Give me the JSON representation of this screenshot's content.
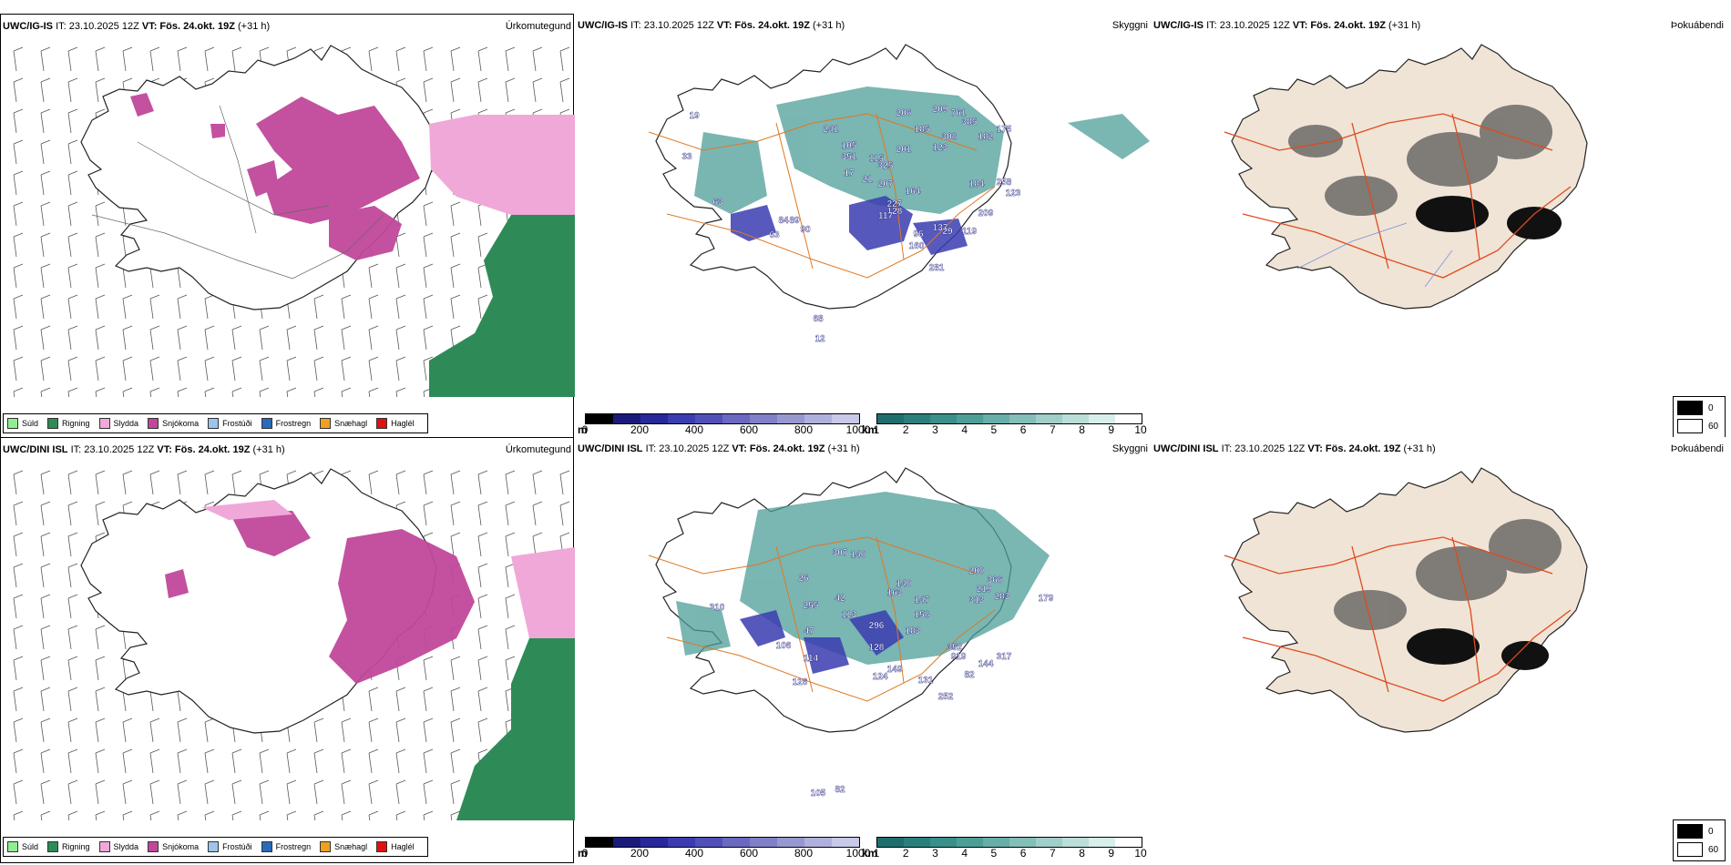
{
  "rows": [
    {
      "model": "UWC/IG-IS",
      "it_text": "IT: 23.10.2025 12Z",
      "vt_label": "VT:",
      "vt_value": "Fös. 24.okt. 19Z",
      "lead": "(+31 h)",
      "cloud_labels": [
        "19",
        "33",
        "241",
        "206",
        "761",
        "185",
        "308",
        "385",
        "209",
        "175",
        "351",
        "201",
        "123",
        "105",
        "325",
        "182",
        "258",
        "115",
        "207",
        "21",
        "164",
        "184",
        "227",
        "17",
        "123",
        "209",
        "63",
        "128",
        "29",
        "117",
        "137",
        "119",
        "96",
        "160",
        "281",
        "89",
        "90",
        "84",
        "63",
        "68",
        "12"
      ]
    },
    {
      "model": "UWC/DINI ISL",
      "it_text": "IT: 23.10.2025 12Z",
      "vt_label": "VT:",
      "vt_value": "Fös. 24.okt. 19Z",
      "lead": "(+31 h)",
      "cloud_labels": [
        "307",
        "140",
        "26",
        "140",
        "200",
        "366",
        "219",
        "313",
        "283",
        "179",
        "310",
        "255",
        "42",
        "163",
        "147",
        "158",
        "113",
        "47",
        "296",
        "183",
        "352",
        "317",
        "106",
        "114",
        "128",
        "919",
        "144",
        "149",
        "124",
        "131",
        "82",
        "252",
        "126",
        "82",
        "105"
      ]
    }
  ],
  "panel_titles": {
    "precip": "Úrkomutegund",
    "cloud": "Skyggni",
    "fog": "Þokuábendi"
  },
  "precip_legend": [
    {
      "label": "Súld",
      "color": "#90ee90"
    },
    {
      "label": "Rigning",
      "color": "#2e8b57"
    },
    {
      "label": "Slydda",
      "color": "#f0a8d8"
    },
    {
      "label": "Snjókoma",
      "color": "#c0489a"
    },
    {
      "label": "Frostúði",
      "color": "#9cc4ec"
    },
    {
      "label": "Frostregn",
      "color": "#2a6ab8"
    },
    {
      "label": "Snæhagl",
      "color": "#f0a020"
    },
    {
      "label": "Haglél",
      "color": "#e01010"
    }
  ],
  "cloud_base_bar": {
    "unit": "m",
    "ticks": [
      "0",
      "200",
      "400",
      "600",
      "800",
      "1000"
    ],
    "colors": [
      "#000000",
      "#1a1a7a",
      "#27289a",
      "#3a3cb0",
      "#5050b8",
      "#6a68c0",
      "#8080c8",
      "#9898d0",
      "#b0b0dc",
      "#c8c8e8"
    ]
  },
  "visibility_bar": {
    "unit": "km",
    "ticks": [
      "1",
      "2",
      "3",
      "4",
      "5",
      "6",
      "7",
      "8",
      "9",
      "10"
    ],
    "colors": [
      "#1f6e6e",
      "#2a7f7c",
      "#3a8f8a",
      "#4e9e98",
      "#68aea8",
      "#84beb8",
      "#a0cec8",
      "#bcded8",
      "#d8eeea",
      "#ffffff"
    ]
  },
  "fog_legend": {
    "labels": [
      "0",
      "60"
    ]
  }
}
